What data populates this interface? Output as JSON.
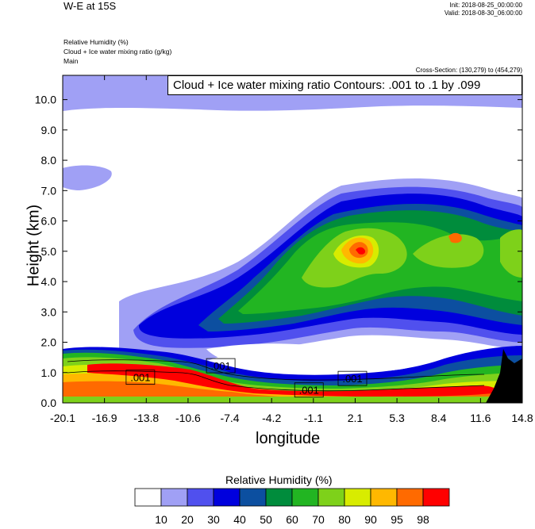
{
  "header": {
    "title": "W-E at 15S",
    "init": "Init: 2018-08-25_00:00:00",
    "valid": "Valid: 2018-08-30_06:00:00",
    "field1": "Relative Humidity   (%)",
    "field2": "Cloud + Ice water mixing ratio   (g/kg)",
    "field3": "Main",
    "cross_section": "Cross-Section: (130,279) to (454,279)",
    "contour_info": "Cloud + Ice water mixing ratio Contours: .001 to .1 by .099"
  },
  "chart_data": {
    "type": "heatmap",
    "xlabel": "longitude",
    "ylabel": "Height (km)",
    "xlim": [
      -20.1,
      14.8
    ],
    "ylim": [
      0.0,
      10.8
    ],
    "x_ticks": [
      "-20.1",
      "-16.9",
      "-13.8",
      "-10.6",
      "-7.4",
      "-4.2",
      "-1.1",
      "2.1",
      "5.3",
      "8.4",
      "11.6",
      "14.8"
    ],
    "y_ticks": [
      "0.0",
      "1.0",
      "2.0",
      "3.0",
      "4.0",
      "5.0",
      "6.0",
      "7.0",
      "8.0",
      "9.0",
      "10.0"
    ],
    "y_tick_values": [
      0,
      1,
      2,
      3,
      4,
      5,
      6,
      7,
      8,
      9,
      10
    ],
    "colorbar": {
      "title": "Relative Humidity  (%)",
      "levels": [
        "10",
        "20",
        "30",
        "40",
        "50",
        "60",
        "70",
        "80",
        "90",
        "95",
        "98"
      ],
      "colors": [
        "#ffffff",
        "#a0a0f5",
        "#5050ee",
        "#0000dd",
        "#0c4fa0",
        "#008c3c",
        "#22b522",
        "#7ed11a",
        "#d8ec00",
        "#ffb800",
        "#ff6a00",
        "#ff0000"
      ]
    },
    "contour_labels": [
      {
        "text": ".001",
        "x": -14.2,
        "y": 0.82
      },
      {
        "text": ".001",
        "x": -8.1,
        "y": 1.2
      },
      {
        "text": ".001",
        "x": -1.4,
        "y": 0.4
      },
      {
        "text": ".001",
        "x": 1.9,
        "y": 0.78
      }
    ]
  }
}
